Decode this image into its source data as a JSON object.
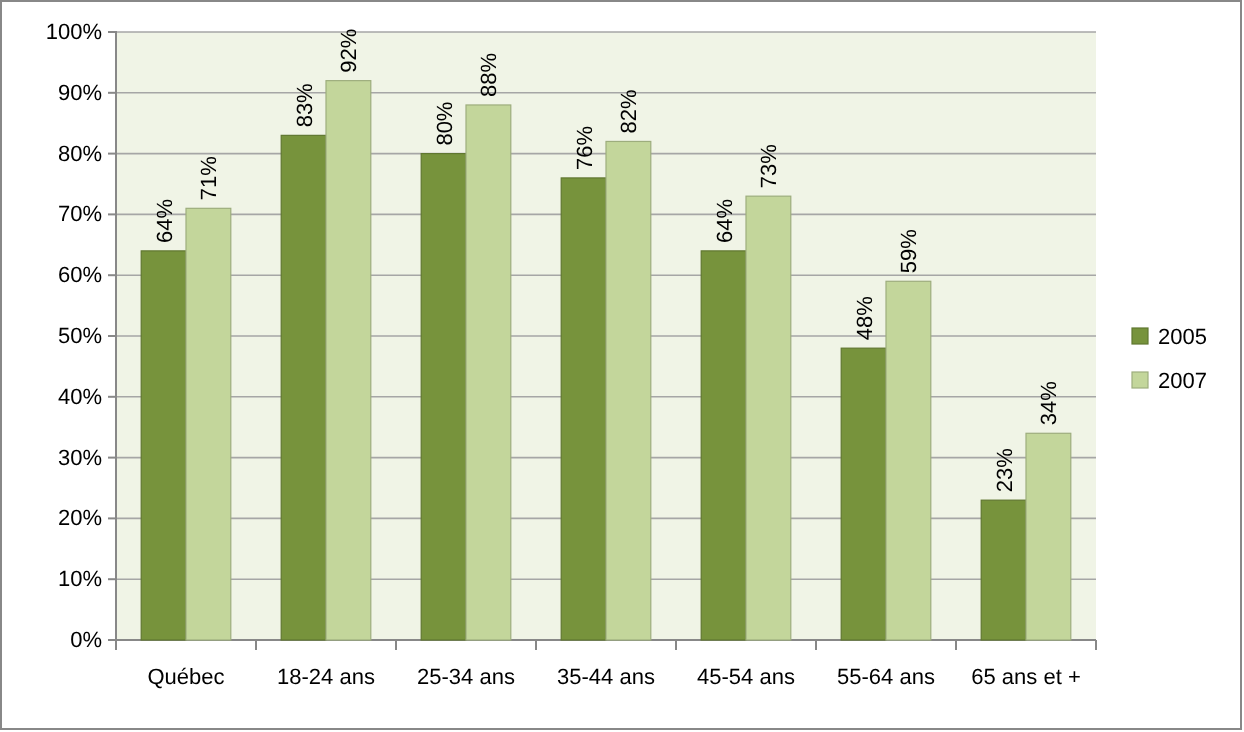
{
  "chart_data": {
    "type": "bar",
    "categories": [
      "Québec",
      "18-24 ans",
      "25-34 ans",
      "35-44 ans",
      "45-54 ans",
      "55-64 ans",
      "65 ans et +"
    ],
    "series": [
      {
        "name": "2005",
        "color": "#77933c",
        "values": [
          64,
          83,
          80,
          76,
          64,
          48,
          23
        ],
        "value_labels": [
          "64%",
          "83%",
          "80%",
          "76%",
          "64%",
          "48%",
          "23%"
        ]
      },
      {
        "name": "2007",
        "color": "#c3d69b",
        "values": [
          71,
          92,
          88,
          82,
          73,
          59,
          34
        ],
        "value_labels": [
          "71%",
          "92%",
          "88%",
          "82%",
          "73%",
          "59%",
          "34%"
        ]
      }
    ],
    "ylim": [
      0,
      100
    ],
    "yticks": [
      {
        "value": 0,
        "label": "0%"
      },
      {
        "value": 10,
        "label": "10%"
      },
      {
        "value": 20,
        "label": "20%"
      },
      {
        "value": 30,
        "label": "30%"
      },
      {
        "value": 40,
        "label": "40%"
      },
      {
        "value": 50,
        "label": "50%"
      },
      {
        "value": 60,
        "label": "60%"
      },
      {
        "value": 70,
        "label": "70%"
      },
      {
        "value": 80,
        "label": "80%"
      },
      {
        "value": 90,
        "label": "90%"
      },
      {
        "value": 100,
        "label": "100%"
      }
    ],
    "grid": "y",
    "legend": "right"
  }
}
